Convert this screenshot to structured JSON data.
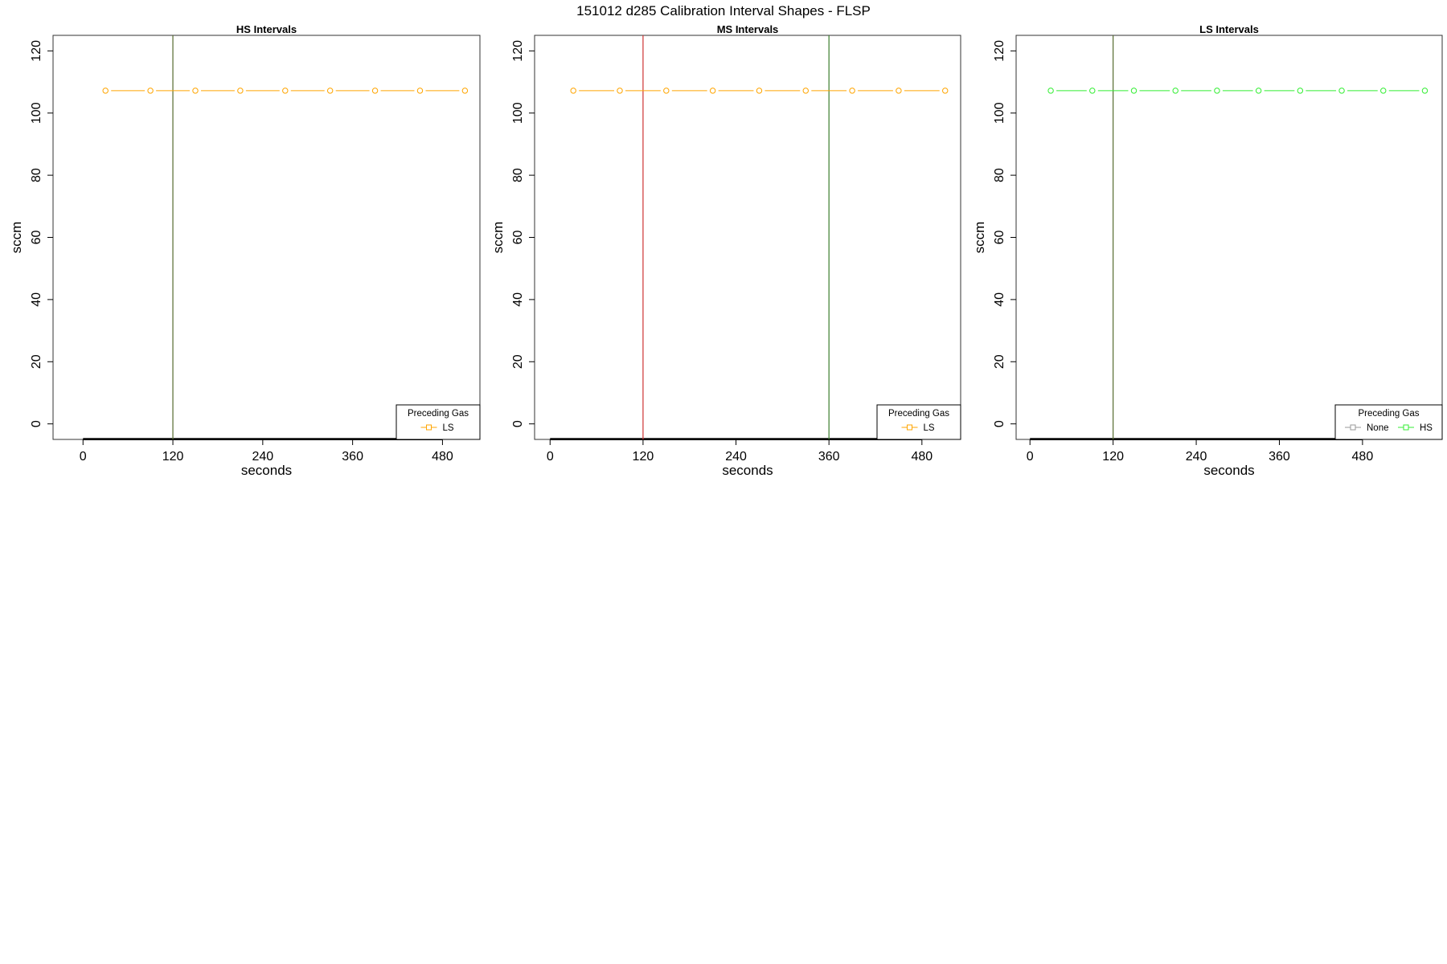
{
  "figure": {
    "title": "151012   d285   Calibration Interval Shapes - FLSP"
  },
  "chart_data": [
    {
      "type": "line",
      "title": "HS Intervals",
      "xlabel": "seconds",
      "ylabel": "sccm",
      "xlim": [
        -40,
        530
      ],
      "ylim": [
        -5,
        125
      ],
      "xticks": [
        0,
        120,
        240,
        360,
        480
      ],
      "yticks": [
        0,
        20,
        40,
        60,
        80,
        100,
        120
      ],
      "vlines": [
        {
          "x": 120,
          "color": "#556b2f"
        }
      ],
      "baseline": {
        "y": -5,
        "x_from": 0,
        "x_to": 530,
        "color": "#000000"
      },
      "series": [
        {
          "name": "LS",
          "color": "#ffa500",
          "marker": "circle",
          "x": [
            30,
            90,
            150,
            210,
            270,
            330,
            390,
            450,
            510
          ],
          "y": [
            107.2,
            107.2,
            107.2,
            107.2,
            107.2,
            107.2,
            107.2,
            107.2,
            107.2
          ]
        }
      ],
      "legend": {
        "title": "Preceding Gas",
        "position": "bottom-right",
        "entries": [
          {
            "label": "LS",
            "color": "#ffa500"
          }
        ]
      }
    },
    {
      "type": "line",
      "title": "MS Intervals",
      "xlabel": "seconds",
      "ylabel": "sccm",
      "xlim": [
        -20,
        530
      ],
      "ylim": [
        -5,
        125
      ],
      "xticks": [
        0,
        120,
        240,
        360,
        480
      ],
      "yticks": [
        0,
        20,
        40,
        60,
        80,
        100,
        120
      ],
      "vlines": [
        {
          "x": 120,
          "color": "#cd3333"
        },
        {
          "x": 360,
          "color": "#3a7d2c"
        }
      ],
      "baseline": {
        "y": -5,
        "x_from": 0,
        "x_to": 530,
        "color": "#000000"
      },
      "series": [
        {
          "name": "LS",
          "color": "#ffa500",
          "marker": "circle",
          "x": [
            30,
            90,
            150,
            210,
            270,
            330,
            390,
            450,
            510
          ],
          "y": [
            107.2,
            107.2,
            107.2,
            107.2,
            107.2,
            107.2,
            107.2,
            107.2,
            107.2
          ]
        }
      ],
      "legend": {
        "title": "Preceding Gas",
        "position": "bottom-right",
        "entries": [
          {
            "label": "LS",
            "color": "#ffa500"
          }
        ]
      }
    },
    {
      "type": "line",
      "title": "LS Intervals",
      "xlabel": "seconds",
      "ylabel": "sccm",
      "xlim": [
        -20,
        595
      ],
      "ylim": [
        -5,
        125
      ],
      "xticks": [
        0,
        120,
        240,
        360,
        480
      ],
      "yticks": [
        0,
        20,
        40,
        60,
        80,
        100,
        120
      ],
      "vlines": [
        {
          "x": 120,
          "color": "#556b2f"
        }
      ],
      "baseline": {
        "y": -5,
        "x_from": 0,
        "x_to": 595,
        "color": "#000000"
      },
      "series": [
        {
          "name": "HS",
          "color": "#33ee33",
          "marker": "circle",
          "x": [
            30,
            90,
            150,
            210,
            270,
            330,
            390,
            450,
            510,
            570
          ],
          "y": [
            107.2,
            107.2,
            107.2,
            107.2,
            107.2,
            107.2,
            107.2,
            107.2,
            107.2,
            107.2
          ]
        }
      ],
      "legend": {
        "title": "Preceding Gas",
        "position": "bottom-right",
        "entries": [
          {
            "label": "None",
            "color": "#999999"
          },
          {
            "label": "HS",
            "color": "#33ee33"
          }
        ]
      }
    }
  ]
}
